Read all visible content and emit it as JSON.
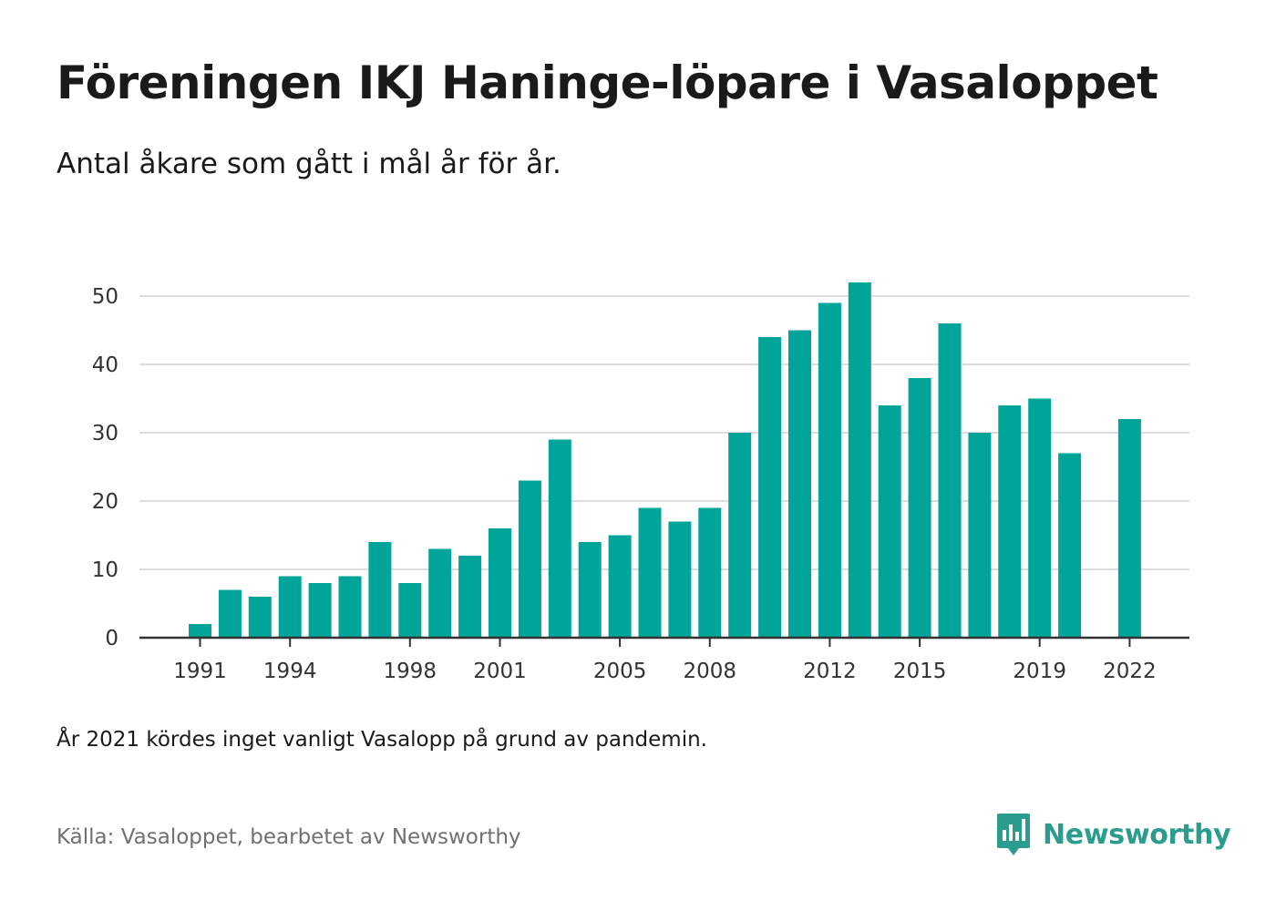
{
  "title": "Föreningen IKJ Haninge-löpare i Vasaloppet",
  "subtitle": "Antal åkare som gått i mål år för år.",
  "note": "År 2021 kördes inget vanligt Vasalopp på grund av pandemin.",
  "source": "Källa: Vasaloppet, bearbetet av Newsworthy",
  "brand": {
    "name": "Newsworthy",
    "icon": "newsworthy-logo-icon",
    "color": "#2a9d8f"
  },
  "colors": {
    "bar": "#00a499",
    "grid": "#dddddd",
    "axis": "#333333"
  },
  "chart_data": {
    "type": "bar",
    "categories": [
      1991,
      1992,
      1993,
      1994,
      1995,
      1996,
      1997,
      1998,
      1999,
      2000,
      2001,
      2002,
      2003,
      2004,
      2005,
      2006,
      2007,
      2008,
      2009,
      2010,
      2011,
      2012,
      2013,
      2014,
      2015,
      2016,
      2017,
      2018,
      2019,
      2020,
      2021,
      2022
    ],
    "values": [
      2,
      7,
      6,
      9,
      8,
      9,
      14,
      8,
      13,
      12,
      16,
      23,
      29,
      14,
      15,
      19,
      17,
      19,
      30,
      44,
      45,
      49,
      52,
      34,
      38,
      46,
      30,
      34,
      35,
      27,
      null,
      32
    ],
    "x_tick_labels": [
      "1991",
      "1994",
      "1998",
      "2001",
      "2005",
      "2008",
      "2012",
      "2015",
      "2019",
      "2022"
    ],
    "y_ticks": [
      0,
      10,
      20,
      30,
      40,
      50
    ],
    "ylim": [
      0,
      52
    ],
    "xlabel": "",
    "ylabel": "",
    "grid": true,
    "legend": "none"
  }
}
